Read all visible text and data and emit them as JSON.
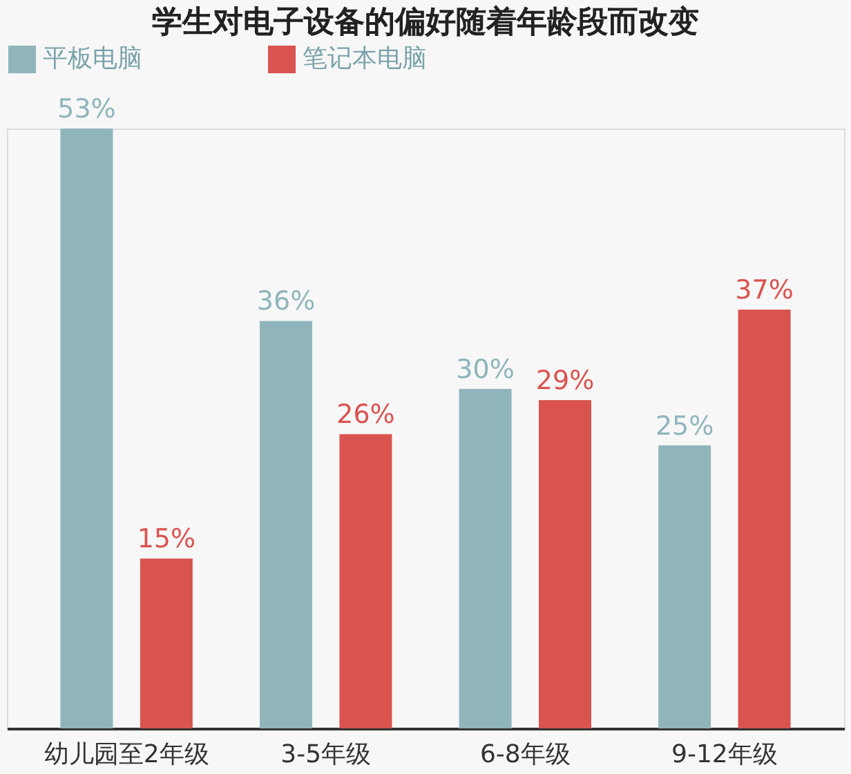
{
  "chart_data": {
    "type": "bar",
    "title": "学生对电子设备的偏好随着年龄段而改变",
    "categories": [
      "幼儿园至2年级",
      "3-5年级",
      "6-8年级",
      "9-12年级"
    ],
    "series": [
      {
        "name": "平板电脑",
        "color": "#8fb5bb",
        "values": [
          53,
          36,
          30,
          25
        ],
        "value_labels": [
          "53%",
          "36%",
          "30%",
          "25%"
        ]
      },
      {
        "name": "笔记本电脑",
        "color": "#d9534f",
        "values": [
          15,
          26,
          29,
          37
        ],
        "value_labels": [
          "15%",
          "26%",
          "29%",
          "37%"
        ]
      }
    ],
    "legend": "top left",
    "grid": false
  }
}
